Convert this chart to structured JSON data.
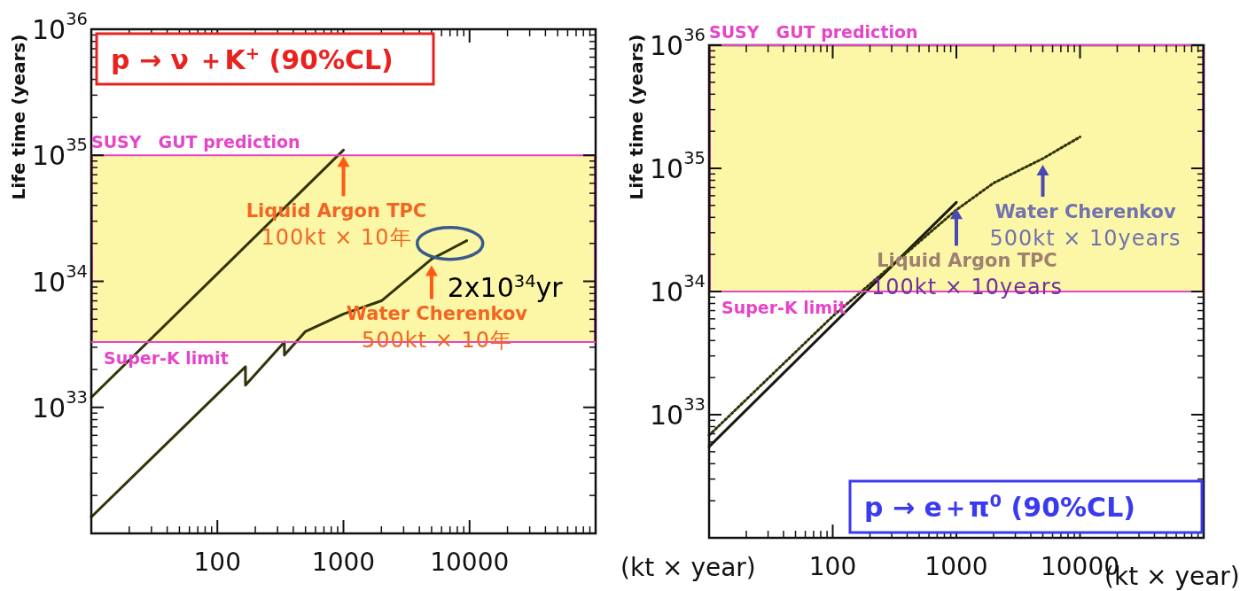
{
  "chart_data": [
    {
      "type": "line",
      "title": "p → ν ＋K$^{+}$ (90%CL)",
      "xlabel": "(kt × year)",
      "ylabel": "Life time (years)",
      "log": "xy",
      "xlim": [
        10,
        100000
      ],
      "ylim": [
        1e+32,
        1e+36
      ],
      "xticks": [
        100,
        1000,
        10000
      ],
      "yticks": [
        {
          "value": 1e+33,
          "label": "10$^{33}$"
        },
        {
          "value": 1e+34,
          "label": "10$^{34}$"
        },
        {
          "value": 1e+35,
          "label": "10$^{35}$"
        },
        {
          "value": 1e+36,
          "label": "10$^{36}$"
        }
      ],
      "series": [
        {
          "color": "#333308",
          "x": [
            10,
            1000
          ],
          "values": [
            1.2e+33,
            1.1e+35
          ]
        },
        {
          "color": "#333308",
          "x": [
            10,
            167,
            167,
            340,
            340,
            500,
            1000,
            2000,
            5000,
            9500
          ],
          "values": [
            1.35e+32,
            2.1e+33,
            1.5e+33,
            3.3e+33,
            2.6e+33,
            4e+33,
            5.5e+33,
            7e+33,
            1.5e+34,
            2.1e+34
          ]
        }
      ],
      "bands": [
        {
          "axis": "y",
          "from": 3.3e+33,
          "to": 1e+35,
          "color": "#fbf7a6"
        }
      ],
      "ref_lines": [
        {
          "axis": "y",
          "value": 1e+35,
          "label": "SUSY　GUT prediction",
          "color": "#e645c8"
        },
        {
          "axis": "y",
          "value": 3.3e+33,
          "label": "Super-K limit",
          "color": "#e645c8"
        }
      ],
      "annotations": [
        {
          "text": "Liquid Argon TPC\n100kt × 10年",
          "x": 1000,
          "y": 1.1e+35
        },
        {
          "text": "Water Cherenkov\n500kt × 10年",
          "x": 5000,
          "y": 1.5e+34
        },
        {
          "text": "2x10$^{34}$yr",
          "x": 7000,
          "y": 2e+34
        }
      ]
    },
    {
      "type": "line",
      "title": "p → e＋π$^{0}$ (90%CL)",
      "xlabel": "(kt × year)",
      "ylabel": "Life time (years)",
      "log": "xy",
      "xlim": [
        10,
        100000
      ],
      "ylim": [
        1e+32,
        1e+36
      ],
      "xticks": [
        100,
        1000,
        10000
      ],
      "yticks": [
        {
          "value": 1e+33,
          "label": "10$^{33}$"
        },
        {
          "value": 1e+34,
          "label": "10$^{34}$"
        },
        {
          "value": 1e+35,
          "label": "10$^{35}$"
        },
        {
          "value": 1e+36,
          "label": "10$^{36}$"
        }
      ],
      "series": [
        {
          "color": "#1a1a10",
          "x": [
            10,
            1000
          ],
          "values": [
            5.5e+32,
            5.3e+34
          ]
        },
        {
          "color": "#333308",
          "line_style": "dotted",
          "x": [
            10,
            100,
            1000,
            2000,
            5000,
            10000
          ],
          "values": [
            6.8e+32,
            6.3e+33,
            4.6e+34,
            7.6e+34,
            1.2e+35,
            1.8e+35
          ]
        }
      ],
      "bands": [
        {
          "axis": "y",
          "from": 1e+34,
          "to": 1e+36,
          "color": "#fbf7a6"
        }
      ],
      "ref_lines": [
        {
          "axis": "y",
          "value": 1e+36,
          "label": "SUSY　GUT prediction",
          "color": "#e645c8"
        },
        {
          "axis": "y",
          "value": 1e+34,
          "label": "Super-K limit",
          "color": "#e645c8"
        }
      ],
      "annotations": [
        {
          "text": "Liquid Argon TPC\n100kt × 10years",
          "x": 1000,
          "y": 5.3e+34
        },
        {
          "text": "Water Cherenkov\n500kt × 10years",
          "x": 5000,
          "y": 1.2e+35
        }
      ]
    }
  ]
}
